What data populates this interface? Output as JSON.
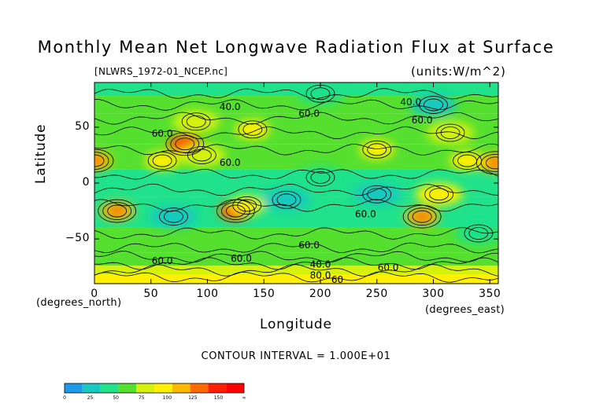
{
  "chart_data": {
    "type": "heatmap",
    "title": "Monthly Mean Net Longwave Radiation Flux at Surface",
    "subtitle": "[NLWRS_1972-01_NCEP.nc]",
    "units": "(units:W/m^2)",
    "xlabel": "Longitude",
    "ylabel": "Latitude",
    "x_unit": "(degrees_east)",
    "y_unit": "(degrees_north)",
    "xlim": [
      0,
      357.5
    ],
    "ylim": [
      -90,
      90
    ],
    "x_ticks": [
      0,
      50,
      100,
      150,
      200,
      250,
      300,
      350
    ],
    "y_ticks": [
      50,
      0,
      -50
    ],
    "x_tick_labels": [
      "0",
      "50",
      "100",
      "150",
      "200",
      "250",
      "300",
      "350"
    ],
    "y_tick_labels": [
      "50",
      "0",
      "−50"
    ],
    "contour_interval_text": "CONTOUR INTERVAL = 1.000E+01",
    "contour_labels": [
      {
        "text": "40.0",
        "lon": 120,
        "lat": 68
      },
      {
        "text": "40.0",
        "lon": 280,
        "lat": 72
      },
      {
        "text": "60.0",
        "lon": 190,
        "lat": 62
      },
      {
        "text": "60.0",
        "lon": 290,
        "lat": 56
      },
      {
        "text": "60.0",
        "lon": 60,
        "lat": 44
      },
      {
        "text": "60.0",
        "lon": 120,
        "lat": 18
      },
      {
        "text": "60.0",
        "lon": 240,
        "lat": -28
      },
      {
        "text": "60.0",
        "lon": 190,
        "lat": -56
      },
      {
        "text": "60.0",
        "lon": 130,
        "lat": -68
      },
      {
        "text": "60.0",
        "lon": 60,
        "lat": -70
      },
      {
        "text": "40.0",
        "lon": 200,
        "lat": -73
      },
      {
        "text": "80.0",
        "lon": 200,
        "lat": -83
      },
      {
        "text": "60",
        "lon": 215,
        "lat": -87
      },
      {
        "text": "60.0",
        "lon": 260,
        "lat": -76
      }
    ],
    "colorbar": {
      "levels": [
        0,
        25,
        50,
        75,
        100,
        125,
        150
      ],
      "tick_labels": [
        "0",
        "25",
        "50",
        "75",
        "100",
        "125",
        "150",
        "∞"
      ],
      "colors": [
        "#1e9be8",
        "#18c9c1",
        "#1fe28a",
        "#55e030",
        "#d6f20a",
        "#fff000",
        "#ffb800",
        "#ff6a00",
        "#ff1f00",
        "#ff0000"
      ]
    },
    "field_regions": [
      {
        "lon": 0,
        "lat": 20,
        "value": 130
      },
      {
        "lon": 355,
        "lat": 18,
        "value": 120
      },
      {
        "lon": 80,
        "lat": 35,
        "value": 140
      },
      {
        "lon": 60,
        "lat": 20,
        "value": 110
      },
      {
        "lon": 95,
        "lat": 25,
        "value": 95
      },
      {
        "lon": 140,
        "lat": 48,
        "value": 110
      },
      {
        "lon": 125,
        "lat": -25,
        "value": 150
      },
      {
        "lon": 135,
        "lat": -20,
        "value": 115
      },
      {
        "lon": 20,
        "lat": -25,
        "value": 120
      },
      {
        "lon": 290,
        "lat": -30,
        "value": 130
      },
      {
        "lon": 305,
        "lat": -10,
        "value": 100
      },
      {
        "lon": 250,
        "lat": 30,
        "value": 105
      },
      {
        "lon": 330,
        "lat": 20,
        "value": 110
      },
      {
        "lon": 315,
        "lat": 45,
        "value": 90
      },
      {
        "lon": 90,
        "lat": 55,
        "value": 80
      },
      {
        "lon": 170,
        "lat": -15,
        "value": 35
      },
      {
        "lon": 70,
        "lat": -30,
        "value": 35
      },
      {
        "lon": 200,
        "lat": 5,
        "value": 40
      },
      {
        "lon": 250,
        "lat": -10,
        "value": 30
      },
      {
        "lon": 300,
        "lat": 70,
        "value": 30
      },
      {
        "lon": 200,
        "lat": 80,
        "value": 45
      },
      {
        "lon": 340,
        "lat": -45,
        "value": 40
      }
    ]
  }
}
